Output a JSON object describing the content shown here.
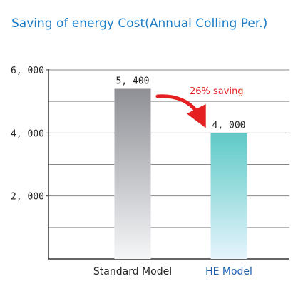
{
  "chart_data": {
    "type": "bar",
    "title": "Saving of energy Cost(Annual Colling Per.)",
    "categories": [
      "Standard Model",
      "HE Model"
    ],
    "values": [
      5400,
      4000
    ],
    "value_labels": [
      "5, 400",
      "4, 000"
    ],
    "ylim": [
      0,
      6000
    ],
    "y_ticks": [
      2000,
      4000,
      6000
    ],
    "y_tick_labels": [
      "2, 000",
      "4, 000",
      "6, 000"
    ],
    "y_gridlines": [
      1000,
      2000,
      3000,
      4000,
      5000,
      6000
    ],
    "grid": true,
    "annotation": {
      "text": "26% saving"
    },
    "colors": {
      "title": "#1a7bc7",
      "standard_top": "#8f9096",
      "standard_bottom": "#f5f6f8",
      "he_top": "#5ecac6",
      "he_bottom": "#e6f4fd",
      "standard_label": "#222222",
      "he_label": "#1a5fb0",
      "annotation": "#e52020",
      "grid": "#8a8a8a"
    }
  }
}
